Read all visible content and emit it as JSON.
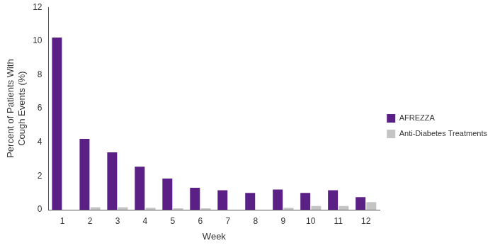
{
  "chart_data": {
    "type": "bar",
    "x_label": "Week",
    "y_label": [
      "Percent of Patients With",
      "Cough Events (%)"
    ],
    "categories": [
      "1",
      "2",
      "3",
      "4",
      "5",
      "6",
      "7",
      "8",
      "9",
      "10",
      "11",
      "12"
    ],
    "series": [
      {
        "name": "AFREZZA",
        "color": "#5b2085",
        "values": [
          10.2,
          4.2,
          3.4,
          2.55,
          1.85,
          1.3,
          1.15,
          1.0,
          1.2,
          1.0,
          1.15,
          0.75
        ]
      },
      {
        "name": "Anti-Diabetes Treatments",
        "color": "#c4c4c4",
        "values": [
          0,
          0.15,
          0.15,
          0.12,
          0.08,
          0.08,
          0,
          0,
          0.12,
          0.22,
          0.22,
          0.45
        ]
      }
    ],
    "ylim": [
      0,
      12
    ],
    "yticks": [
      0,
      2,
      4,
      6,
      8,
      10,
      12
    ],
    "grid": false,
    "legend": "right"
  }
}
